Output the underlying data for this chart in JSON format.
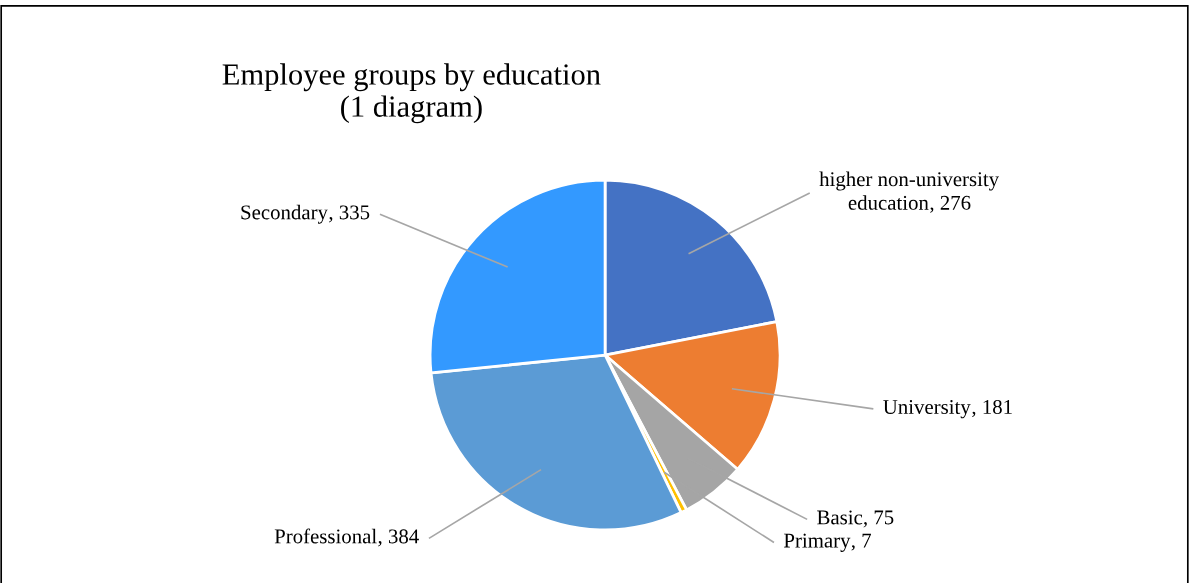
{
  "chart_data": {
    "type": "pie",
    "title": "Employee groups by education\n(1 diagram)",
    "categories": [
      "higher non-university education",
      "University",
      "Basic",
      "Primary",
      "Professional",
      "Secondary"
    ],
    "values": [
      276,
      181,
      75,
      7,
      384,
      335
    ],
    "colors": [
      "#4472c4",
      "#ed7d31",
      "#a5a5a5",
      "#ffc000",
      "#5b9bd5",
      "#3399ff"
    ],
    "value_labels": [
      ", 276",
      ", 181",
      ", 75",
      ", 7",
      ", 384",
      ", 335"
    ],
    "legend": false
  }
}
